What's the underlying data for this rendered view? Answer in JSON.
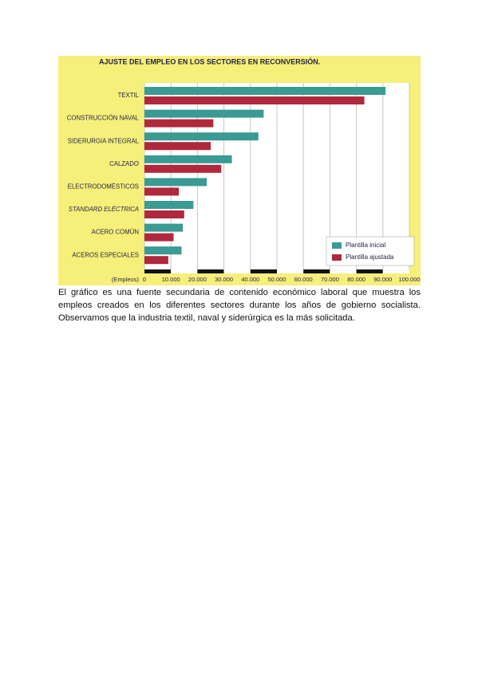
{
  "chart_data": {
    "type": "bar",
    "orientation": "horizontal",
    "title": "AJUSTE DEL EMPLEO EN LOS SECTORES EN RECONVERSIÓN.",
    "xlabel": "(Empleos)",
    "categories": [
      "TEXTIL",
      "CONSTRUCCIÓN NAVAL",
      "SIDERURGIA INTEGRAL",
      "CALZADO",
      "ELECTRODOMÉSTICOS",
      "STANDARD ELÉCTRICA",
      "ACERO COMÚN",
      "ACEROS ESPECIALES"
    ],
    "series": [
      {
        "name": "Plantilla inicial",
        "color": "#3a9a94",
        "values": [
          91000,
          45000,
          43000,
          33000,
          23500,
          18500,
          14500,
          14000
        ]
      },
      {
        "name": "Plantilla ajustada",
        "color": "#b0283c",
        "values": [
          83000,
          26000,
          25000,
          29000,
          13000,
          15000,
          11000,
          9000
        ]
      }
    ],
    "xlim": [
      0,
      100000
    ],
    "xticks": [
      0,
      {
        "value": 10000,
        "label": "10.000"
      },
      {
        "value": 20000,
        "label": "20.000"
      },
      {
        "value": 30000,
        "label": "30.000"
      },
      {
        "value": 40000,
        "label": "40.000"
      },
      {
        "value": 50000,
        "label": "50.000"
      },
      {
        "value": 60000,
        "label": "60.000"
      },
      {
        "value": 70000,
        "label": "70.000"
      },
      {
        "value": 80000,
        "label": "80.000"
      },
      {
        "value": 90000,
        "label": "90.000"
      },
      {
        "value": 100000,
        "label": "100.000"
      }
    ],
    "grid": true,
    "legend": "lower right"
  },
  "paragraph": "El gráfico es una fuente secundaria de contenido económico laboral que muestra los empleos creados en los diferentes sectores durante los años de gobierno socialista. Observamos que la industria textil, naval y siderúrgica es la más solicitada."
}
